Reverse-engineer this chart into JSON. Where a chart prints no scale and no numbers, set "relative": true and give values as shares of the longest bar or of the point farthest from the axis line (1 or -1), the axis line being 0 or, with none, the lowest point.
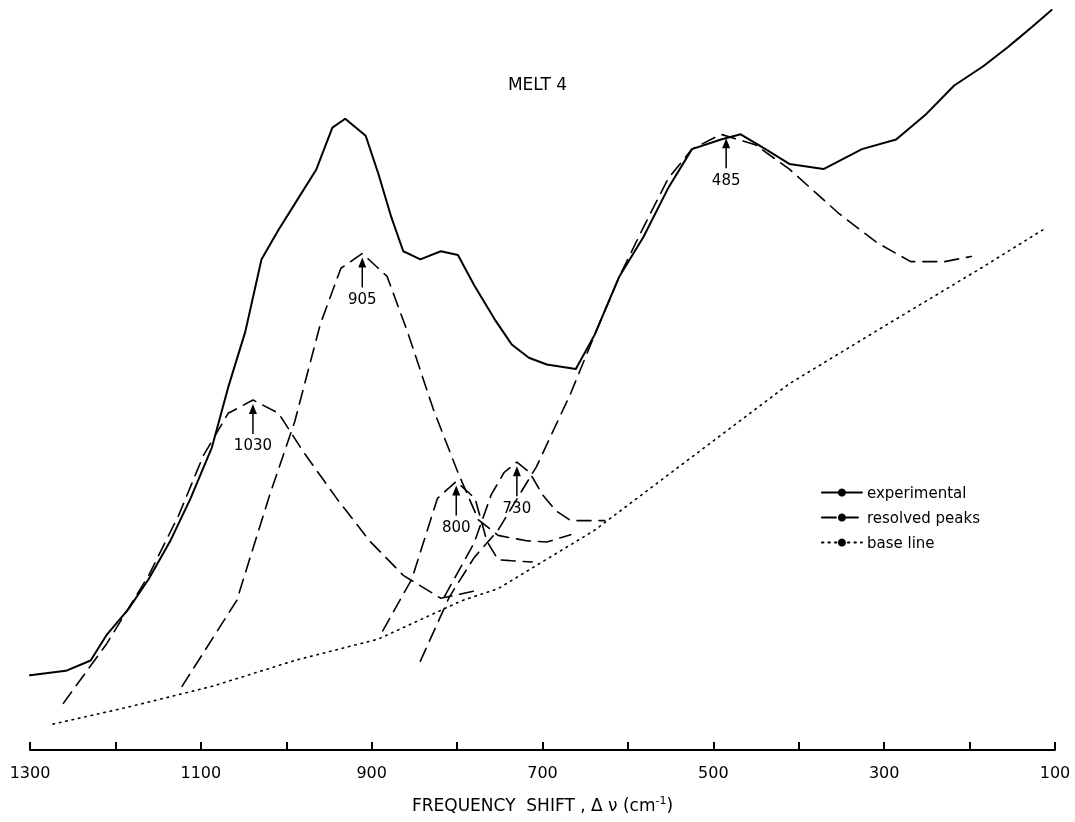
{
  "chart_data": {
    "type": "line",
    "title": "MELT 4",
    "xlabel": "FREQUENCY  SHIFT , Δ ν (cm$^{-1}$)",
    "relative": true,
    "xlim": [
      1300,
      100
    ],
    "xticks": [
      1300,
      {
        "value": 1200,
        "label": null
      },
      1100,
      {
        "value": 1000,
        "label": null
      },
      900,
      {
        "value": 800,
        "label": null
      },
      700,
      {
        "value": 600,
        "label": null
      },
      500,
      {
        "value": 400,
        "label": null
      },
      300,
      {
        "value": 200,
        "label": null
      },
      100
    ],
    "grid": false,
    "legend": "right",
    "marker": "none",
    "tick_labels": "x",
    "series": [
      {
        "name": "experimental",
        "color": "#000000",
        "line_style": "solid",
        "x": [
          1300,
          1258,
          1229,
          1210,
          1185,
          1161,
          1136,
          1112,
          1087,
          1068,
          1048,
          1029,
          1009,
          990,
          965,
          946,
          931,
          907,
          892,
          877,
          863,
          843,
          819,
          799,
          780,
          756,
          736,
          716,
          695,
          661,
          639,
          610,
          582,
          553,
          525,
          491,
          468,
          439,
          411,
          371,
          326,
          286,
          252,
          218,
          184,
          155,
          127,
          104
        ],
        "values": [
          0.101,
          0.107,
          0.121,
          0.156,
          0.19,
          0.231,
          0.282,
          0.34,
          0.409,
          0.49,
          0.565,
          0.663,
          0.703,
          0.738,
          0.784,
          0.841,
          0.853,
          0.83,
          0.778,
          0.72,
          0.674,
          0.663,
          0.674,
          0.669,
          0.628,
          0.582,
          0.548,
          0.53,
          0.521,
          0.515,
          0.561,
          0.64,
          0.693,
          0.759,
          0.812,
          0.825,
          0.832,
          0.812,
          0.792,
          0.785,
          0.812,
          0.825,
          0.858,
          0.898,
          0.924,
          0.95,
          0.977,
          1.0
        ]
      },
      {
        "name": "resolved peaks",
        "color": "#000000",
        "line_style": "dashed",
        "x": [
          1261,
          1210,
          1161,
          1126,
          1097,
          1068,
          1039,
          1009,
          980,
          941,
          902,
          863,
          819,
          775
        ],
        "values": [
          0.063,
          0.144,
          0.236,
          0.317,
          0.398,
          0.455,
          0.473,
          0.455,
          0.403,
          0.34,
          0.282,
          0.236,
          0.205,
          0.216
        ]
      },
      {
        "color": "#000000",
        "line_style": "dashed",
        "x": [
          1122,
          1058,
          1019,
          990,
          960,
          936,
          911,
          882,
          858,
          828,
          799,
          775,
          752,
          720,
          695,
          667
        ],
        "values": [
          0.086,
          0.202,
          0.346,
          0.444,
          0.576,
          0.651,
          0.671,
          0.64,
          0.565,
          0.461,
          0.375,
          0.311,
          0.29,
          0.283,
          0.281,
          0.291
        ]
      },
      {
        "color": "#000000",
        "line_style": "dashed",
        "x": [
          887,
          853,
          823,
          801,
          779,
          765,
          752,
          712
        ],
        "values": [
          0.161,
          0.231,
          0.34,
          0.363,
          0.34,
          0.282,
          0.257,
          0.254
        ]
      },
      {
        "color": "#000000",
        "line_style": "dashed",
        "x": [
          815,
          780,
          760,
          745,
          730,
          715,
          700,
          684,
          667,
          627
        ],
        "values": [
          0.207,
          0.28,
          0.345,
          0.375,
          0.389,
          0.375,
          0.345,
          0.323,
          0.31,
          0.31
        ]
      },
      {
        "color": "#000000",
        "line_style": "dashed",
        "x": [
          843,
          809,
          780,
          752,
          707,
          667,
          639,
          610,
          582,
          553,
          525,
          491,
          451,
          411,
          354,
          309,
          269,
          229,
          198
        ],
        "values": [
          0.12,
          0.207,
          0.26,
          0.297,
          0.383,
          0.482,
          0.561,
          0.64,
          0.706,
          0.772,
          0.812,
          0.832,
          0.818,
          0.785,
          0.726,
          0.686,
          0.66,
          0.66,
          0.667
        ]
      },
      {
        "name": "base line",
        "color": "#000000",
        "line_style": "dotted",
        "x": [
          1273,
          1185,
          1087,
          990,
          892,
          794,
          752,
          639,
          525,
          411,
          298,
          184,
          110
        ],
        "values": [
          0.035,
          0.058,
          0.086,
          0.121,
          0.15,
          0.202,
          0.218,
          0.297,
          0.396,
          0.495,
          0.574,
          0.653,
          0.706
        ]
      }
    ],
    "annotations": [
      {
        "text": "1030",
        "x": 1039,
        "y": 0.473
      },
      {
        "text": "905",
        "x": 911,
        "y": 0.671
      },
      {
        "text": "800",
        "x": 801,
        "y": 0.363
      },
      {
        "text": "730",
        "x": 730,
        "y": 0.389
      },
      {
        "text": "485",
        "x": 485,
        "y": 0.832
      }
    ]
  }
}
